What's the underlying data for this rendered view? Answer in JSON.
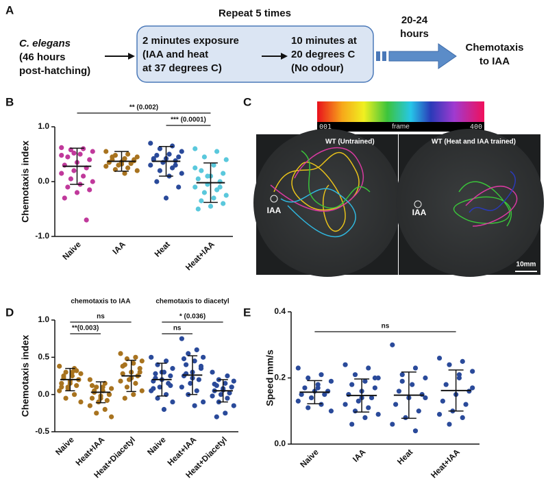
{
  "panel_labels": [
    "A",
    "B",
    "C",
    "D",
    "E"
  ],
  "panel_a": {
    "repeat": "Repeat 5 times",
    "organism": "C. elegans",
    "age": [
      "(46 hours",
      "post-hatching)"
    ],
    "exposure": [
      "2 minutes exposure",
      "(IAA and heat",
      "at 37 degrees C)"
    ],
    "rest": [
      "10 minutes at",
      "20 degrees C",
      "(No odour)"
    ],
    "wait": [
      "20-24",
      "hours"
    ],
    "result": [
      "Chemotaxis",
      "to IAA"
    ]
  },
  "panel_c": {
    "colorbar": [
      "001",
      "frame",
      "400"
    ],
    "left_title": "WT (Untrained)",
    "right_title": "WT (Heat and IAA trained)",
    "left_spot": "IAA",
    "right_spot": "IAA",
    "scale": "10mm"
  },
  "chart_data": [
    {
      "type": "dot_plot",
      "ylabel": "Chemotaxis index",
      "ylim": [
        -1,
        1
      ],
      "yticks": [
        {
          "value": -1,
          "label": "-1.0"
        },
        {
          "value": 0,
          "label": "0.0"
        },
        {
          "value": 1,
          "label": "1.0"
        }
      ],
      "categories": [
        "Naive",
        "IAA",
        "Heat",
        "Heat+IAA"
      ],
      "colors": [
        "#c0399b",
        "#a8731f",
        "#2a4a9a",
        "#5ac8dc"
      ],
      "points": [
        [
          0.62,
          0.6,
          0.58,
          0.55,
          0.5,
          0.45,
          0.4,
          0.35,
          0.3,
          0.25,
          0.2,
          0.15,
          0.1,
          0.05,
          0.0,
          -0.05,
          -0.1,
          -0.15,
          -0.2,
          -0.3,
          -0.7,
          0.52,
          0.48
        ],
        [
          0.55,
          0.5,
          0.48,
          0.45,
          0.42,
          0.4,
          0.38,
          0.36,
          0.35,
          0.33,
          0.3,
          0.28,
          0.25,
          0.22,
          0.2,
          0.15,
          0.45,
          0.4,
          0.32
        ],
        [
          0.7,
          0.65,
          0.6,
          0.55,
          0.5,
          0.48,
          0.45,
          0.42,
          0.4,
          0.38,
          0.35,
          0.3,
          0.25,
          0.2,
          0.15,
          0.1,
          0.0,
          -0.1,
          -0.3,
          0.42,
          0.3
        ],
        [
          0.6,
          0.55,
          0.45,
          0.4,
          0.3,
          0.2,
          0.15,
          0.1,
          0.05,
          0.0,
          -0.05,
          -0.1,
          -0.15,
          -0.2,
          -0.25,
          -0.3,
          -0.35,
          -0.4,
          -0.45,
          -0.5,
          -0.1,
          0.1,
          0.25
        ]
      ],
      "means": [
        0.28,
        0.37,
        0.37,
        -0.02
      ],
      "sds": [
        0.33,
        0.18,
        0.27,
        0.36
      ],
      "brackets": [
        {
          "text": "** (0.002)",
          "from": "Naive",
          "to": "Heat+IAA"
        },
        {
          "text": "*** (0.0001)",
          "from": "Heat",
          "to": "Heat+IAA"
        }
      ]
    },
    {
      "type": "dot_plot",
      "ylabel": "Chemotaxis index",
      "ylim": [
        -0.5,
        1
      ],
      "yticks": [
        -0.5,
        {
          "value": 0,
          "label": "0.0"
        },
        0.5,
        {
          "value": 1,
          "label": "1.0"
        }
      ],
      "groups": [
        {
          "label": "chemotaxis to IAA",
          "categories": [
            "Naive",
            "Heat+IAA",
            "Heat+Diacetyl"
          ],
          "colors": [
            "#a8731f",
            "#a8731f",
            "#a8731f"
          ],
          "points": [
            [
              0.38,
              0.35,
              0.3,
              0.28,
              0.25,
              0.22,
              0.2,
              0.18,
              0.15,
              0.12,
              0.1,
              0.05,
              0.0,
              -0.05,
              -0.1,
              0.3,
              0.25,
              0.2,
              0.15,
              0.1,
              0.32,
              0.08
            ],
            [
              0.2,
              0.15,
              0.1,
              0.08,
              0.05,
              0.03,
              0.0,
              -0.02,
              -0.05,
              -0.08,
              -0.1,
              -0.15,
              -0.2,
              -0.25,
              -0.3,
              0.1,
              0.05,
              0.0,
              -0.05,
              0.12
            ],
            [
              0.55,
              0.5,
              0.48,
              0.45,
              0.42,
              0.4,
              0.35,
              0.3,
              0.28,
              0.25,
              0.2,
              0.18,
              0.15,
              0.1,
              0.05,
              0.0,
              -0.05,
              0.3,
              0.22,
              0.38
            ]
          ],
          "means": [
            0.2,
            0.03,
            0.25
          ],
          "sds": [
            0.15,
            0.14,
            0.21
          ],
          "brackets": [
            {
              "text": "ns",
              "from": "Naive",
              "to": "Heat+Diacetyl"
            },
            {
              "text": "**(0.003)",
              "from": "Naive",
              "to": "Heat+IAA"
            }
          ]
        },
        {
          "label": "chemotaxis to diacetyl",
          "categories": [
            "Naive",
            "Heat+IAA",
            "Heat+Diacetyl"
          ],
          "colors": [
            "#2a4a9a",
            "#2a4a9a",
            "#2a4a9a"
          ],
          "points": [
            [
              0.5,
              0.45,
              0.4,
              0.35,
              0.3,
              0.28,
              0.25,
              0.2,
              0.18,
              0.15,
              0.1,
              0.05,
              0.0,
              -0.05,
              -0.1,
              -0.2,
              0.22,
              0.12,
              0.3,
              0.08
            ],
            [
              0.75,
              0.6,
              0.55,
              0.5,
              0.45,
              0.4,
              0.35,
              0.3,
              0.25,
              0.2,
              0.15,
              0.1,
              0.05,
              0.0,
              -0.1,
              -0.15,
              0.28,
              0.38,
              0.22,
              0.48
            ],
            [
              0.3,
              0.25,
              0.2,
              0.18,
              0.15,
              0.12,
              0.1,
              0.08,
              0.05,
              0.02,
              0.0,
              -0.02,
              -0.05,
              -0.1,
              -0.15,
              -0.25,
              -0.3,
              0.1,
              0.06,
              0.14
            ]
          ],
          "means": [
            0.2,
            0.26,
            0.05
          ],
          "sds": [
            0.22,
            0.26,
            0.15
          ],
          "brackets": [
            {
              "text": "* (0.036)",
              "from": "Naive",
              "to": "Heat+Diacetyl"
            },
            {
              "text": "ns",
              "from": "Naive",
              "to": "Heat+IAA"
            }
          ]
        }
      ]
    },
    {
      "type": "dot_plot",
      "ylabel": "Speed mm/s",
      "ylim": [
        0,
        0.4
      ],
      "yticks": [
        {
          "value": 0,
          "label": "0.0"
        },
        0.2,
        0.4
      ],
      "categories": [
        "Naive",
        "IAA",
        "Heat",
        "Heat+IAA"
      ],
      "colors": [
        "#2a4a9a",
        "#2a4a9a",
        "#2a4a9a",
        "#2a4a9a"
      ],
      "points": [
        [
          0.23,
          0.21,
          0.2,
          0.19,
          0.18,
          0.17,
          0.16,
          0.16,
          0.15,
          0.15,
          0.14,
          0.13,
          0.12,
          0.11,
          0.1,
          0.17
        ],
        [
          0.24,
          0.23,
          0.21,
          0.2,
          0.19,
          0.18,
          0.17,
          0.16,
          0.15,
          0.14,
          0.13,
          0.12,
          0.11,
          0.1,
          0.09,
          0.08,
          0.06,
          0.2,
          0.14
        ],
        [
          0.3,
          0.23,
          0.21,
          0.2,
          0.18,
          0.16,
          0.15,
          0.14,
          0.12,
          0.1,
          0.08,
          0.06,
          0.04,
          0.19,
          0.14
        ],
        [
          0.26,
          0.25,
          0.24,
          0.22,
          0.2,
          0.18,
          0.16,
          0.15,
          0.13,
          0.12,
          0.1,
          0.09,
          0.08,
          0.06,
          0.17,
          0.21
        ]
      ],
      "means": [
        0.157,
        0.147,
        0.148,
        0.162
      ],
      "sds": [
        0.035,
        0.05,
        0.07,
        0.062
      ],
      "brackets": [
        {
          "text": "ns",
          "from": "Naive",
          "to": "Heat+IAA"
        }
      ]
    }
  ]
}
